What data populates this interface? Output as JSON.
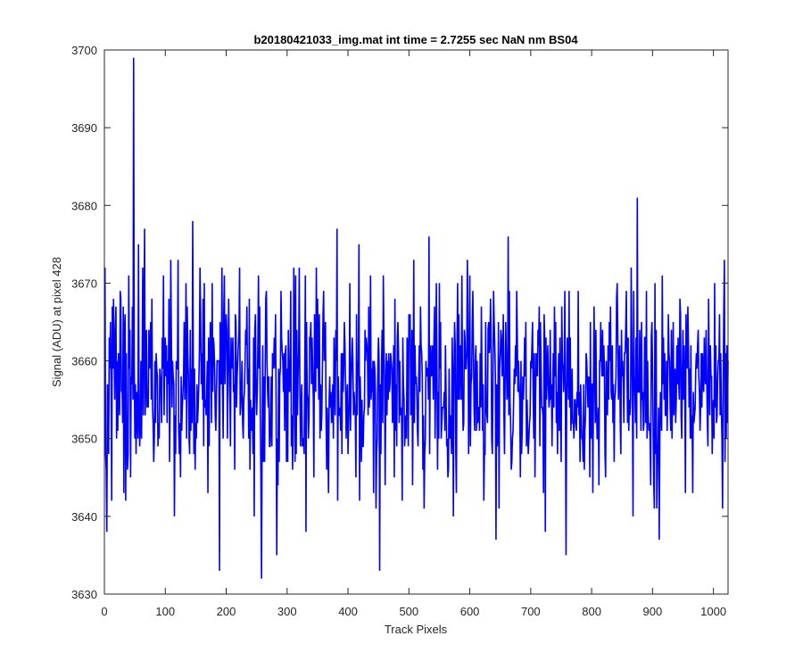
{
  "chart_data": {
    "type": "line",
    "title": "b20180421033_img.mat int time = 2.7255 sec  NaN nm BS04",
    "xlabel": "Track Pixels",
    "ylabel": "Signal (ADU) at pixel 428",
    "xlim": [
      0,
      1024
    ],
    "ylim": [
      3630,
      3700
    ],
    "xticks": [
      0,
      100,
      200,
      300,
      400,
      500,
      600,
      700,
      800,
      900,
      1000
    ],
    "yticks": [
      3630,
      3640,
      3650,
      3660,
      3670,
      3680,
      3690,
      3700
    ],
    "grid": false,
    "box": true,
    "line_color": "#0000ff",
    "n_points": 1024,
    "mean": 3657,
    "series": [
      {
        "name": "",
        "points": [
          [
            1,
            3672
          ],
          [
            4,
            3638
          ],
          [
            8,
            3663
          ],
          [
            12,
            3642
          ],
          [
            15,
            3668
          ],
          [
            20,
            3650
          ],
          [
            26,
            3669
          ],
          [
            30,
            3652
          ],
          [
            35,
            3642
          ],
          [
            40,
            3671
          ],
          [
            44,
            3658
          ],
          [
            48,
            3699
          ],
          [
            52,
            3648
          ],
          [
            56,
            3675
          ],
          [
            61,
            3650
          ],
          [
            66,
            3677
          ],
          [
            72,
            3654
          ],
          [
            78,
            3668
          ],
          [
            83,
            3660
          ],
          [
            90,
            3650
          ],
          [
            97,
            3671
          ],
          [
            103,
            3652
          ],
          [
            109,
            3673
          ],
          [
            115,
            3640
          ],
          [
            121,
            3673
          ],
          [
            128,
            3654
          ],
          [
            134,
            3670
          ],
          [
            140,
            3648
          ],
          [
            145,
            3678
          ],
          [
            151,
            3650
          ],
          [
            157,
            3672
          ],
          [
            163,
            3649
          ],
          [
            170,
            3643
          ],
          [
            177,
            3670
          ],
          [
            183,
            3651
          ],
          [
            189,
            3633
          ],
          [
            196,
            3666
          ],
          [
            202,
            3650
          ],
          [
            208,
            3663
          ],
          [
            214,
            3646
          ],
          [
            221,
            3664
          ],
          [
            227,
            3652
          ],
          [
            234,
            3667
          ],
          [
            240,
            3655
          ],
          [
            246,
            3640
          ],
          [
            252,
            3662
          ],
          [
            258,
            3632
          ],
          [
            265,
            3668
          ],
          [
            271,
            3649
          ],
          [
            277,
            3659
          ],
          [
            283,
            3635
          ],
          [
            290,
            3669
          ],
          [
            296,
            3651
          ],
          [
            302,
            3664
          ],
          [
            308,
            3653
          ],
          [
            313,
            3647
          ],
          [
            320,
            3672
          ],
          [
            326,
            3650
          ],
          [
            331,
            3638
          ],
          [
            338,
            3663
          ],
          [
            344,
            3645
          ],
          [
            350,
            3668
          ],
          [
            356,
            3651
          ],
          [
            363,
            3665
          ],
          [
            369,
            3655
          ],
          [
            376,
            3650
          ],
          [
            382,
            3677
          ],
          [
            388,
            3651
          ],
          [
            394,
            3665
          ],
          [
            400,
            3648
          ],
          [
            406,
            3660
          ],
          [
            412,
            3653
          ],
          [
            418,
            3675
          ],
          [
            424,
            3649
          ],
          [
            431,
            3662
          ],
          [
            438,
            3655
          ],
          [
            446,
            3641
          ],
          [
            452,
            3633
          ],
          [
            458,
            3671
          ],
          [
            464,
            3653
          ],
          [
            470,
            3661
          ],
          [
            477,
            3668
          ],
          [
            484,
            3652
          ],
          [
            490,
            3663
          ],
          [
            496,
            3650
          ],
          [
            502,
            3666
          ],
          [
            508,
            3673
          ],
          [
            514,
            3651
          ],
          [
            520,
            3662
          ],
          [
            526,
            3648
          ],
          [
            533,
            3676
          ],
          [
            540,
            3655
          ],
          [
            546,
            3660
          ],
          [
            552,
            3665
          ],
          [
            559,
            3651
          ],
          [
            566,
            3659
          ],
          [
            573,
            3640
          ],
          [
            580,
            3670
          ],
          [
            586,
            3655
          ],
          [
            592,
            3663
          ],
          [
            598,
            3648
          ],
          [
            605,
            3669
          ],
          [
            611,
            3651
          ],
          [
            617,
            3661
          ],
          [
            623,
            3642
          ],
          [
            630,
            3664
          ],
          [
            637,
            3648
          ],
          [
            643,
            3637
          ],
          [
            650,
            3661
          ],
          [
            657,
            3648
          ],
          [
            663,
            3676
          ],
          [
            670,
            3650
          ],
          [
            677,
            3669
          ],
          [
            683,
            3645
          ],
          [
            690,
            3663
          ],
          [
            696,
            3648
          ],
          [
            702,
            3662
          ],
          [
            708,
            3655
          ],
          [
            714,
            3667
          ],
          [
            721,
            3643
          ],
          [
            728,
            3662
          ],
          [
            735,
            3649
          ],
          [
            741,
            3665
          ],
          [
            747,
            3651
          ],
          [
            753,
            3659
          ],
          [
            758,
            3635
          ],
          [
            765,
            3663
          ],
          [
            771,
            3650
          ],
          [
            778,
            3669
          ],
          [
            785,
            3650
          ],
          [
            791,
            3661
          ],
          [
            797,
            3645
          ],
          [
            804,
            3667
          ],
          [
            810,
            3650
          ],
          [
            816,
            3660
          ],
          [
            823,
            3645
          ],
          [
            829,
            3665
          ],
          [
            835,
            3652
          ],
          [
            842,
            3670
          ],
          [
            848,
            3648
          ],
          [
            855,
            3661
          ],
          [
            862,
            3655
          ],
          [
            869,
            3669
          ],
          [
            875,
            3681
          ],
          [
            881,
            3651
          ],
          [
            887,
            3663
          ],
          [
            893,
            3653
          ],
          [
            899,
            3665
          ],
          [
            905,
            3648
          ],
          [
            911,
            3637
          ],
          [
            918,
            3663
          ],
          [
            924,
            3651
          ],
          [
            931,
            3664
          ],
          [
            938,
            3652
          ],
          [
            945,
            3668
          ],
          [
            951,
            3655
          ],
          [
            958,
            3667
          ],
          [
            964,
            3650
          ],
          [
            971,
            3659
          ],
          [
            978,
            3651
          ],
          [
            985,
            3663
          ],
          [
            991,
            3649
          ],
          [
            997,
            3658
          ],
          [
            1002,
            3670
          ],
          [
            1006,
            3653
          ],
          [
            1010,
            3666
          ],
          [
            1014,
            3650
          ],
          [
            1018,
            3673
          ],
          [
            1021,
            3650
          ],
          [
            1024,
            3660
          ]
        ]
      }
    ]
  }
}
